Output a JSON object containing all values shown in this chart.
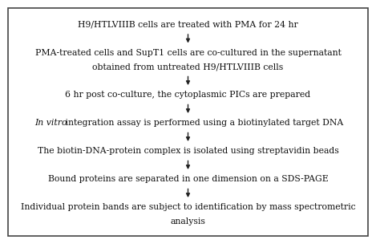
{
  "steps": [
    {
      "lines": [
        "H9/HTLVIIIB cells are treated with PMA for 24 hr"
      ],
      "italic_words": null
    },
    {
      "lines": [
        "PMA-treated cells and SupT1 cells are co-cultured in the supernatant",
        "obtained from untreated H9/HTLVIIIB cells"
      ],
      "italic_words": null
    },
    {
      "lines": [
        "6 hr post co-culture, the cytoplasmic PICs are prepared"
      ],
      "italic_words": null
    },
    {
      "lines": [
        "In vitro integration assay is performed using a biotinylated target DNA"
      ],
      "italic_words": "In vitro"
    },
    {
      "lines": [
        "The biotin-DNA-protein complex is isolated using streptavidin beads"
      ],
      "italic_words": null
    },
    {
      "lines": [
        "Bound proteins are separated in one dimension on a SDS-PAGE"
      ],
      "italic_words": null
    },
    {
      "lines": [
        "Individual protein bands are subject to identification by mass spectrometric",
        "analysis"
      ],
      "italic_words": null
    }
  ],
  "bg_color": "#ffffff",
  "border_color": "#444444",
  "text_color": "#111111",
  "arrow_color": "#222222",
  "font_size": 7.8,
  "fig_width": 4.69,
  "fig_height": 3.04,
  "dpi": 100
}
